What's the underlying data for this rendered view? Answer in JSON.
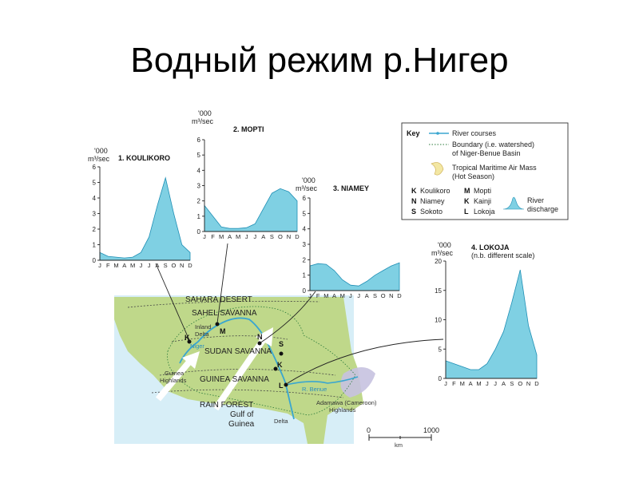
{
  "slide": {
    "title": "Водный режим р.Нигер"
  },
  "months": [
    "J",
    "F",
    "M",
    "A",
    "M",
    "J",
    "J",
    "A",
    "S",
    "O",
    "N",
    "D"
  ],
  "chart_data": [
    {
      "type": "area",
      "title": "1. KOULIKORO",
      "unit_line1": "'000",
      "unit_line2": "m³/sec",
      "ylim": [
        0,
        6
      ],
      "yticks": [
        0,
        1,
        2,
        3,
        4,
        5,
        6
      ],
      "categories": [
        "J",
        "F",
        "M",
        "A",
        "M",
        "J",
        "J",
        "A",
        "S",
        "O",
        "N",
        "D"
      ],
      "values": [
        0.5,
        0.25,
        0.2,
        0.15,
        0.2,
        0.5,
        1.5,
        3.5,
        5.3,
        3.0,
        1.0,
        0.5
      ]
    },
    {
      "type": "area",
      "title": "2. MOPTI",
      "unit_line1": "'000",
      "unit_line2": "m³/sec",
      "ylim": [
        0,
        6
      ],
      "yticks": [
        0,
        1,
        2,
        3,
        4,
        5,
        6
      ],
      "categories": [
        "J",
        "F",
        "M",
        "A",
        "M",
        "J",
        "J",
        "A",
        "S",
        "O",
        "N",
        "D"
      ],
      "values": [
        1.7,
        1.0,
        0.3,
        0.2,
        0.2,
        0.25,
        0.5,
        1.5,
        2.5,
        2.8,
        2.6,
        2.0
      ]
    },
    {
      "type": "area",
      "title": "3. NIAMEY",
      "unit_line1": "'000",
      "unit_line2": "m³/sec",
      "ylim": [
        0,
        6
      ],
      "yticks": [
        0,
        1,
        2,
        3,
        4,
        5,
        6
      ],
      "categories": [
        "J",
        "F",
        "M",
        "A",
        "M",
        "J",
        "J",
        "A",
        "S",
        "O",
        "N",
        "D"
      ],
      "values": [
        1.6,
        1.75,
        1.7,
        1.3,
        0.7,
        0.35,
        0.3,
        0.6,
        1.0,
        1.3,
        1.6,
        1.8
      ]
    },
    {
      "type": "area",
      "title": "4. LOKOJA",
      "subtitle": "(n.b. different scale)",
      "unit_line1": "'000",
      "unit_line2": "m³/sec",
      "ylim": [
        0,
        20
      ],
      "yticks": [
        0,
        5,
        10,
        15,
        20
      ],
      "categories": [
        "J",
        "F",
        "M",
        "A",
        "M",
        "J",
        "J",
        "A",
        "S",
        "O",
        "N",
        "D"
      ],
      "values": [
        3.0,
        2.5,
        2.0,
        1.5,
        1.5,
        2.5,
        5.0,
        8.0,
        13.0,
        18.5,
        9.0,
        4.0
      ]
    }
  ],
  "key": {
    "title": "Key",
    "river_courses": "River courses",
    "boundary_line1": "Boundary (i.e. watershed)",
    "boundary_line2": "of Niger-Benue Basin",
    "air_mass_line1": "Tropical Maritime Air Mass",
    "air_mass_line2": "(Hot Season)",
    "stations": [
      {
        "letter": "K",
        "name": "Koulikoro"
      },
      {
        "letter": "N",
        "name": "Niamey"
      },
      {
        "letter": "S",
        "name": "Sokoto"
      },
      {
        "letter": "M",
        "name": "Mopti"
      },
      {
        "letter": "K",
        "name": "Kainji"
      },
      {
        "letter": "L",
        "name": "Lokoja"
      }
    ],
    "discharge_line1": "River",
    "discharge_line2": "discharge"
  },
  "map": {
    "zone_labels": [
      "SAHARA DESERT",
      "SAHEL SAVANNA",
      "SUDAN SAVANNA",
      "GUINEA SAVANNA",
      "RAIN FOREST"
    ],
    "inland_delta_1": "Inland",
    "inland_delta_2": "Delta",
    "guinea_highlands_1": "Guinea",
    "guinea_highlands_2": "Highlands",
    "gulf_1": "Gulf of",
    "gulf_2": "Guinea",
    "delta": "Delta",
    "adamawa_1": "Adamawa (Cameroon)",
    "adamawa_2": "Highlands",
    "river_niger": "Niger",
    "river_benue": "R. Benue",
    "letters": [
      "K",
      "M",
      "N",
      "S",
      "K",
      "L"
    ],
    "scale_start": "0",
    "scale_end": "1000",
    "scale_unit": "km"
  },
  "colors": {
    "discharge_fill": "#7fd0e3",
    "discharge_line": "#1f8fb5",
    "river": "#3aa6d0",
    "land": "#bfd88a",
    "sea": "#d7eef7",
    "highland": "#c7c2e0"
  }
}
